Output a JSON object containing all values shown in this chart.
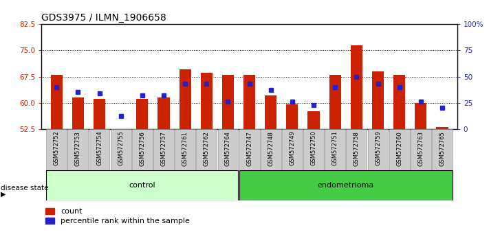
{
  "title": "GDS3975 / ILMN_1906658",
  "samples": [
    "GSM572752",
    "GSM572753",
    "GSM572754",
    "GSM572755",
    "GSM572756",
    "GSM572757",
    "GSM572761",
    "GSM572762",
    "GSM572764",
    "GSM572747",
    "GSM572748",
    "GSM572749",
    "GSM572750",
    "GSM572751",
    "GSM572758",
    "GSM572759",
    "GSM572760",
    "GSM572763",
    "GSM572765"
  ],
  "count_values": [
    68.0,
    61.5,
    61.0,
    52.5,
    61.0,
    61.5,
    69.5,
    68.5,
    68.0,
    68.0,
    62.0,
    59.5,
    57.5,
    68.0,
    76.5,
    69.0,
    68.0,
    60.0,
    53.0
  ],
  "percentile_values": [
    40,
    35,
    34,
    12,
    32,
    32,
    43,
    43,
    26,
    43,
    37,
    26,
    23,
    40,
    50,
    43,
    40,
    26,
    20
  ],
  "control_count": 9,
  "endometrioma_count": 10,
  "ylim_left": [
    52.5,
    82.5
  ],
  "ylim_right": [
    0,
    100
  ],
  "yticks_left": [
    52.5,
    60.0,
    67.5,
    75.0,
    82.5
  ],
  "yticks_right": [
    0,
    25,
    50,
    75,
    100
  ],
  "ytick_labels_right": [
    "0",
    "25",
    "50",
    "75",
    "100%"
  ],
  "bar_color": "#cc2200",
  "percentile_color": "#2222cc",
  "bg_color": "#ffffff",
  "control_bg": "#ccffcc",
  "endometrioma_bg": "#44cc44",
  "sample_bg": "#cccccc",
  "title_fontsize": 10,
  "tick_fontsize": 7.5,
  "bar_width": 0.55
}
